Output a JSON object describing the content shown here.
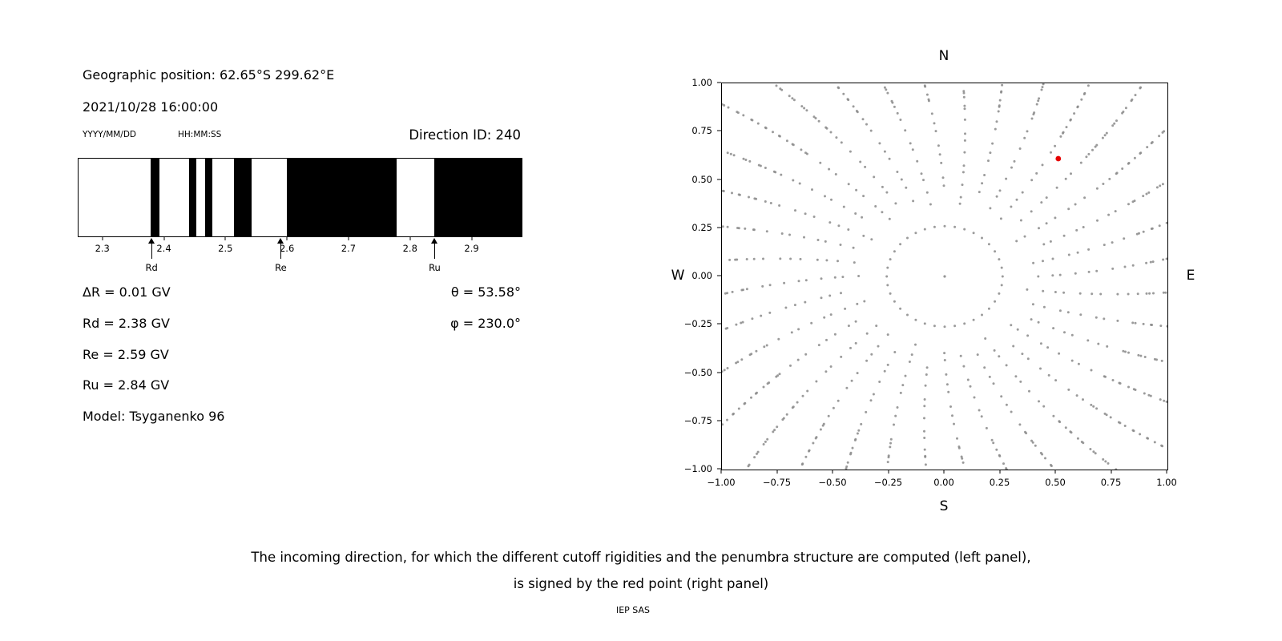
{
  "header": {
    "geo_position": "Geographic position: 62.65°S 299.62°E",
    "datetime": "2021/10/28 16:00:00",
    "date_format_label": "YYYY/MM/DD",
    "time_format_label": "HH:MM:SS",
    "direction_id": "Direction ID: 240"
  },
  "parameters": {
    "delta_r": "ΔR = 0.01 GV",
    "rd": "Rd = 2.38 GV",
    "re": "Re = 2.59 GV",
    "ru": "Ru = 2.84 GV",
    "model": "Model: Tsyganenko 96",
    "theta": "θ = 53.58°",
    "phi": "φ = 230.0°"
  },
  "caption": {
    "line1": "The incoming direction, for which the different cutoff rigidities and the penumbra structure are computed (left panel),",
    "line2": "is signed by the red point (right panel)",
    "credit": "IEP SAS"
  },
  "chart_data": [
    {
      "type": "bar",
      "name": "penumbra-structure",
      "title": "",
      "xlim": [
        2.26,
        2.98
      ],
      "x_ticks": [
        2.3,
        2.4,
        2.5,
        2.6,
        2.7,
        2.8,
        2.9
      ],
      "forbidden_bands": [
        [
          2.377,
          2.392
        ],
        [
          2.44,
          2.452
        ],
        [
          2.466,
          2.478
        ],
        [
          2.513,
          2.541
        ],
        [
          2.599,
          2.777
        ],
        [
          2.838,
          2.98
        ]
      ],
      "markers": [
        {
          "label": "Rd",
          "value": 2.38
        },
        {
          "label": "Re",
          "value": 2.59
        },
        {
          "label": "Ru",
          "value": 2.84
        }
      ],
      "band_color": "#000000",
      "background": "#ffffff"
    },
    {
      "type": "scatter",
      "name": "incoming-directions",
      "title": "",
      "xlim": [
        -1.0,
        1.0
      ],
      "ylim": [
        -1.0,
        1.0
      ],
      "x_tick_labels": [
        "−1.00",
        "−0.75",
        "−0.50",
        "−0.25",
        "0.00",
        "0.25",
        "0.50",
        "0.75",
        "1.00"
      ],
      "y_tick_labels": [
        "1.00",
        "0.75",
        "0.50",
        "0.25",
        "0.00",
        "−0.25",
        "−0.50",
        "−0.75",
        "−1.00"
      ],
      "compass": {
        "top": "N",
        "bottom": "S",
        "left": "W",
        "right": "E"
      },
      "dot_color": "#8a8a8a",
      "red_point": {
        "x": 0.51,
        "y": 0.61,
        "color": "#e60000"
      },
      "pattern": {
        "center_point": true,
        "ring_radius": 0.26,
        "ring_count": 36,
        "spoke_count": 36,
        "spoke_r_start": 0.42,
        "start_variation": 0.05,
        "spoke_r_mid": 0.9,
        "spoke_step": 0.055,
        "tip_step": 0.025,
        "tip_max": 1.38,
        "curvature_deg": 9,
        "jitter": 0.012
      }
    }
  ]
}
